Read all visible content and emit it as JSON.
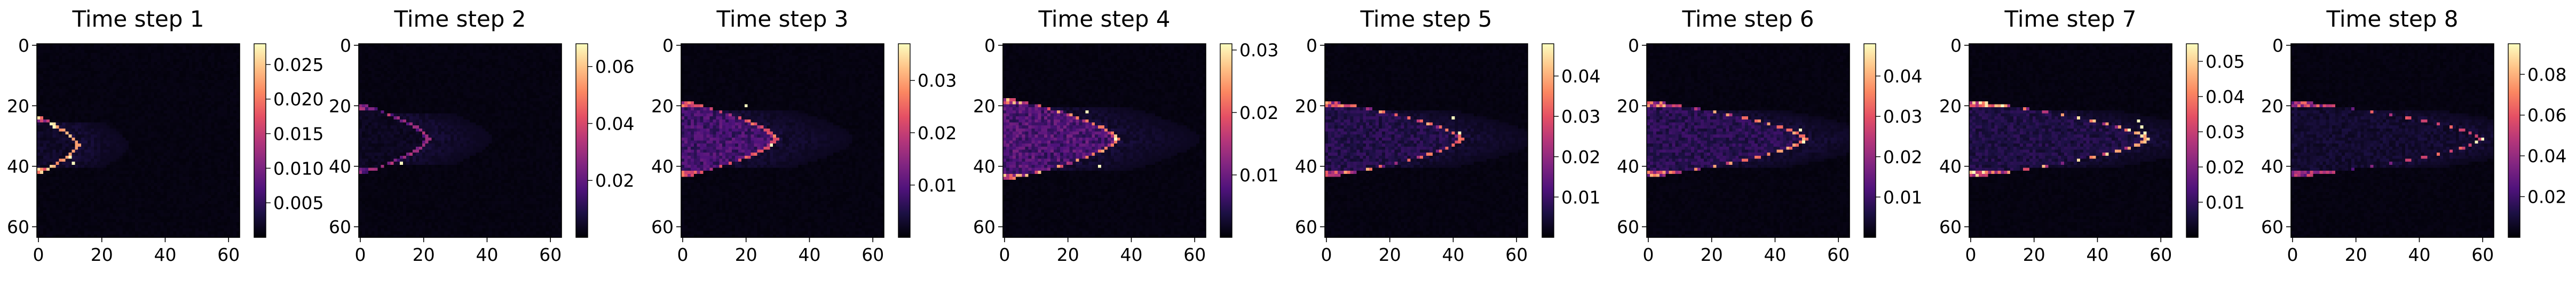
{
  "figure": {
    "colormap": "magma",
    "colormap_stops": [
      "#000004",
      "#1c1044",
      "#4f127b",
      "#812581",
      "#b5367a",
      "#e55064",
      "#fb8761",
      "#fec287",
      "#fcfdbf"
    ]
  },
  "chart_data": [
    {
      "type": "heatmap",
      "title": "Time step 1",
      "x_ticks": [
        "0",
        "20",
        "40",
        "60"
      ],
      "y_ticks": [
        "0",
        "20",
        "40",
        "60"
      ],
      "grid_size": [
        64,
        64
      ],
      "color_range": [
        0,
        0.028
      ],
      "colorbar_ticks": [
        {
          "label": "0.005",
          "value": 0.005
        },
        {
          "label": "0.010",
          "value": 0.01
        },
        {
          "label": "0.015",
          "value": 0.015
        },
        {
          "label": "0.020",
          "value": 0.02
        },
        {
          "label": "0.025",
          "value": 0.025
        }
      ],
      "plume": {
        "head_x": 13,
        "center_y": 33,
        "half_height": 9,
        "front_intensity": 1.0,
        "body_intensity": 0.1,
        "tail_length": 16,
        "front_hotspots": [
          [
            10,
            37
          ],
          [
            5,
            27
          ],
          [
            11,
            39
          ]
        ]
      }
    },
    {
      "type": "heatmap",
      "title": "Time step 2",
      "x_ticks": [
        "0",
        "20",
        "40",
        "60"
      ],
      "y_ticks": [
        "0",
        "20",
        "40",
        "60"
      ],
      "grid_size": [
        64,
        64
      ],
      "color_range": [
        0,
        0.068
      ],
      "colorbar_ticks": [
        {
          "label": "0.02",
          "value": 0.02
        },
        {
          "label": "0.04",
          "value": 0.04
        },
        {
          "label": "0.06",
          "value": 0.06
        }
      ],
      "plume": {
        "head_x": 22,
        "center_y": 31,
        "half_height": 11,
        "front_intensity": 0.55,
        "body_intensity": 0.08,
        "tail_length": 20,
        "front_hotspots": [
          [
            13,
            39
          ]
        ]
      }
    },
    {
      "type": "heatmap",
      "title": "Time step 3",
      "x_ticks": [
        "0",
        "20",
        "40",
        "60"
      ],
      "y_ticks": [
        "0",
        "20",
        "40",
        "60"
      ],
      "grid_size": [
        64,
        64
      ],
      "color_range": [
        0,
        0.037
      ],
      "colorbar_ticks": [
        {
          "label": "0.01",
          "value": 0.01
        },
        {
          "label": "0.02",
          "value": 0.02
        },
        {
          "label": "0.03",
          "value": 0.03
        }
      ],
      "plume": {
        "head_x": 30,
        "center_y": 31,
        "half_height": 12,
        "front_intensity": 0.75,
        "body_intensity": 0.32,
        "tail_length": 24,
        "front_hotspots": [
          [
            28,
            33
          ],
          [
            20,
            20
          ]
        ]
      }
    },
    {
      "type": "heatmap",
      "title": "Time step 4",
      "x_ticks": [
        "0",
        "20",
        "40",
        "60"
      ],
      "y_ticks": [
        "0",
        "20",
        "40",
        "60"
      ],
      "grid_size": [
        64,
        64
      ],
      "color_range": [
        0,
        0.031
      ],
      "colorbar_ticks": [
        {
          "label": "0.01",
          "value": 0.01
        },
        {
          "label": "0.02",
          "value": 0.02
        },
        {
          "label": "0.03",
          "value": 0.03
        }
      ],
      "plume": {
        "head_x": 36,
        "center_y": 31,
        "half_height": 13,
        "front_intensity": 0.9,
        "body_intensity": 0.35,
        "tail_length": 26,
        "front_hotspots": [
          [
            35,
            31
          ],
          [
            30,
            40
          ],
          [
            26,
            22
          ]
        ]
      }
    },
    {
      "type": "heatmap",
      "title": "Time step 5",
      "x_ticks": [
        "0",
        "20",
        "40",
        "60"
      ],
      "y_ticks": [
        "0",
        "20",
        "40",
        "60"
      ],
      "grid_size": [
        64,
        64
      ],
      "color_range": [
        0,
        0.048
      ],
      "colorbar_ticks": [
        {
          "label": "0.01",
          "value": 0.01
        },
        {
          "label": "0.02",
          "value": 0.02
        },
        {
          "label": "0.03",
          "value": 0.03
        },
        {
          "label": "0.04",
          "value": 0.04
        }
      ],
      "plume": {
        "head_x": 43,
        "center_y": 31,
        "half_height": 12,
        "front_intensity": 0.85,
        "body_intensity": 0.2,
        "tail_length": 24,
        "front_hotspots": [
          [
            40,
            24
          ],
          [
            42,
            29
          ]
        ]
      }
    },
    {
      "type": "heatmap",
      "title": "Time step 6",
      "x_ticks": [
        "0",
        "20",
        "40",
        "60"
      ],
      "y_ticks": [
        "0",
        "20",
        "40",
        "60"
      ],
      "grid_size": [
        64,
        64
      ],
      "color_range": [
        0,
        0.048
      ],
      "colorbar_ticks": [
        {
          "label": "0.01",
          "value": 0.01
        },
        {
          "label": "0.02",
          "value": 0.02
        },
        {
          "label": "0.03",
          "value": 0.03
        },
        {
          "label": "0.04",
          "value": 0.04
        }
      ],
      "plume": {
        "head_x": 50,
        "center_y": 31,
        "half_height": 12,
        "front_intensity": 0.85,
        "body_intensity": 0.22,
        "tail_length": 24,
        "front_hotspots": [
          [
            48,
            28
          ],
          [
            49,
            32
          ]
        ]
      }
    },
    {
      "type": "heatmap",
      "title": "Time step 7",
      "x_ticks": [
        "0",
        "20",
        "40",
        "60"
      ],
      "y_ticks": [
        "0",
        "20",
        "40",
        "60"
      ],
      "grid_size": [
        64,
        64
      ],
      "color_range": [
        0,
        0.055
      ],
      "colorbar_ticks": [
        {
          "label": "0.01",
          "value": 0.01
        },
        {
          "label": "0.02",
          "value": 0.02
        },
        {
          "label": "0.03",
          "value": 0.03
        },
        {
          "label": "0.04",
          "value": 0.04
        },
        {
          "label": "0.05",
          "value": 0.05
        }
      ],
      "plume": {
        "head_x": 56,
        "center_y": 31,
        "half_height": 12,
        "front_intensity": 1.0,
        "body_intensity": 0.18,
        "tail_length": 24,
        "front_hotspots": [
          [
            54,
            27
          ],
          [
            55,
            29
          ],
          [
            53,
            25
          ]
        ]
      }
    },
    {
      "type": "heatmap",
      "title": "Time step 8",
      "x_ticks": [
        "0",
        "20",
        "40",
        "60"
      ],
      "y_ticks": [
        "0",
        "20",
        "40",
        "60"
      ],
      "grid_size": [
        64,
        64
      ],
      "color_range": [
        0,
        0.095
      ],
      "colorbar_ticks": [
        {
          "label": "0.02",
          "value": 0.02
        },
        {
          "label": "0.04",
          "value": 0.04
        },
        {
          "label": "0.06",
          "value": 0.06
        },
        {
          "label": "0.08",
          "value": 0.08
        }
      ],
      "plume": {
        "head_x": 60,
        "center_y": 31,
        "half_height": 12,
        "front_intensity": 0.7,
        "body_intensity": 0.12,
        "tail_length": 24,
        "front_hotspots": [
          [
            58,
            32
          ],
          [
            60,
            31
          ]
        ]
      }
    }
  ]
}
